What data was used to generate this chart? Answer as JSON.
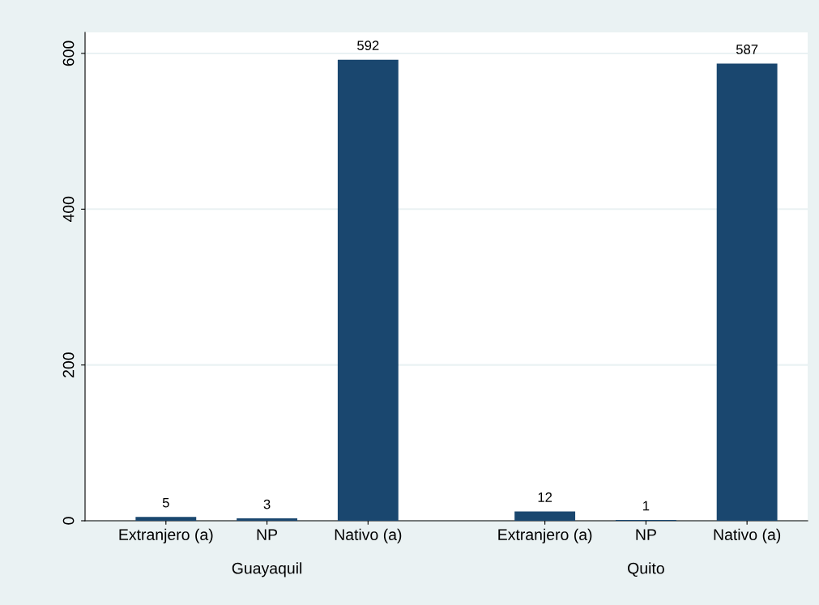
{
  "chart_data": {
    "type": "bar",
    "categories": [
      "Extranjero (a)",
      "NP",
      "Nativo (a)",
      "Extranjero (a)",
      "NP",
      "Nativo (a)"
    ],
    "values": [
      5,
      3,
      592,
      12,
      1,
      587
    ],
    "color": "#1a476f",
    "annotations": [
      "Guayaquil",
      "Quito"
    ],
    "ylim": [
      0,
      627
    ],
    "yticks": [
      0,
      200,
      400,
      600
    ],
    "grid": "y",
    "data_labels": true
  }
}
